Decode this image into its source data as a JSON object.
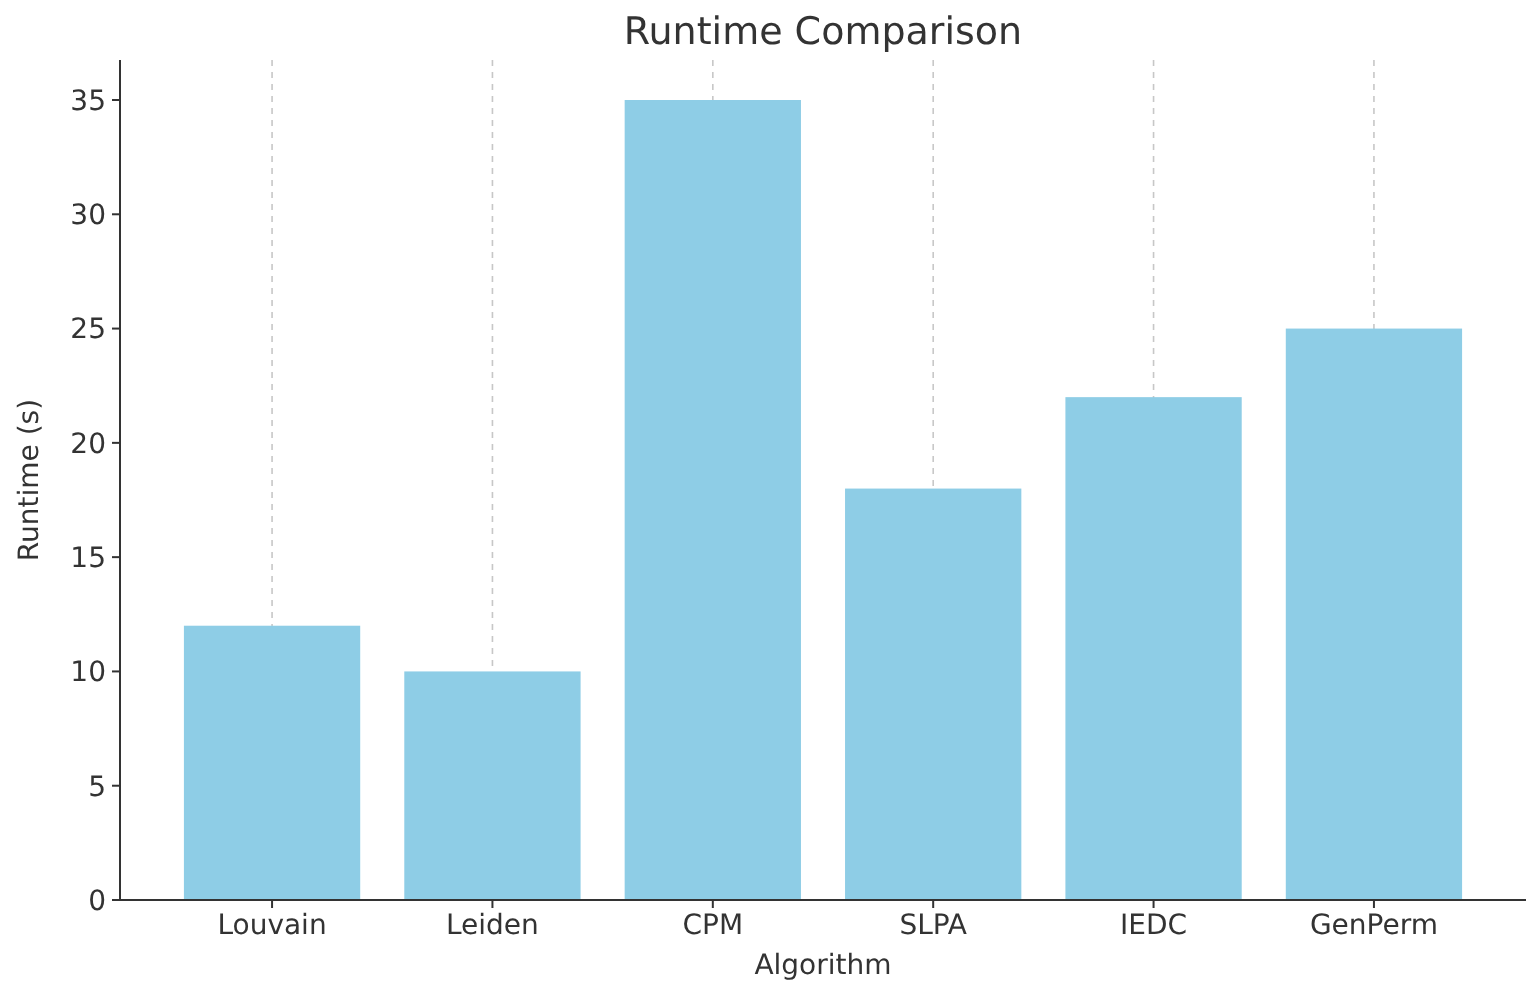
{
  "chart_data": {
    "type": "bar",
    "title": "Runtime Comparison",
    "xlabel": "Algorithm",
    "ylabel": "Runtime (s)",
    "categories": [
      "Louvain",
      "Leiden",
      "CPM",
      "SLPA",
      "IEDC",
      "GenPerm"
    ],
    "values": [
      12,
      10,
      35,
      18,
      22,
      25
    ],
    "color": "#8ecde6",
    "ylim": [
      0,
      36.75
    ],
    "yticks": [
      0,
      5,
      10,
      15,
      20,
      25,
      30,
      35
    ],
    "grid": "x"
  }
}
